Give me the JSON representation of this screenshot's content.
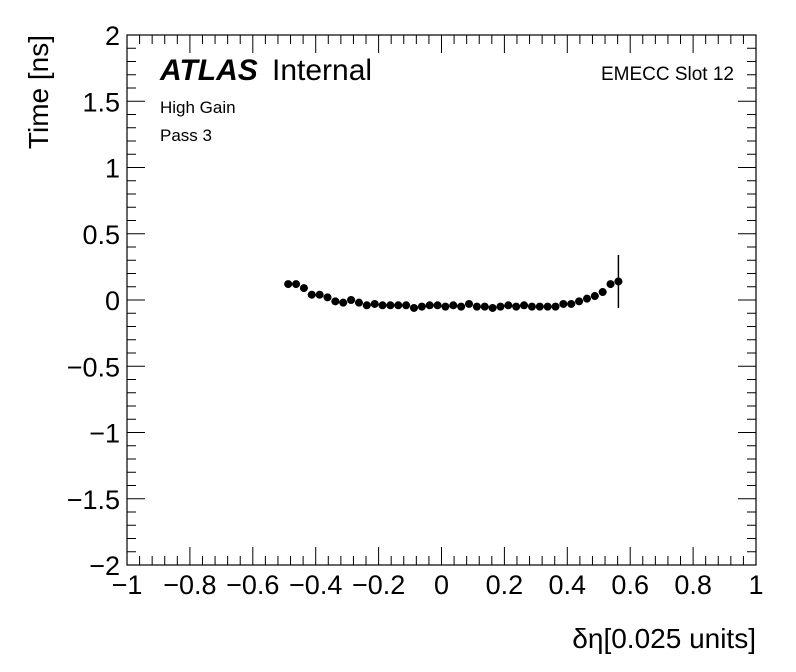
{
  "chart_data": {
    "type": "scatter",
    "xlabel": "δη[0.025 units]",
    "ylabel": "Time [ns]",
    "xlim": [
      -1,
      1
    ],
    "ylim": [
      -2,
      2
    ],
    "x_ticks": [
      -1,
      -0.8,
      -0.6,
      -0.4,
      -0.2,
      0,
      0.2,
      0.4,
      0.6,
      0.8,
      1
    ],
    "x_tick_labels": [
      "−1",
      "−0.8",
      "−0.6",
      "−0.4",
      "−0.2",
      "0",
      "0.2",
      "0.4",
      "0.6",
      "0.8",
      "1"
    ],
    "y_ticks": [
      -2,
      -1.5,
      -1,
      -0.5,
      0,
      0.5,
      1,
      1.5,
      2
    ],
    "y_tick_labels": [
      "−2",
      "−1.5",
      "−1",
      "−0.5",
      "0",
      "0.5",
      "1",
      "1.5",
      "2"
    ],
    "grid": false,
    "marker_color": "#000000",
    "series": [
      {
        "x": [
          -0.4875,
          -0.4625,
          -0.4375,
          -0.4125,
          -0.3875,
          -0.3625,
          -0.3375,
          -0.3125,
          -0.2875,
          -0.2625,
          -0.2375,
          -0.2125,
          -0.1875,
          -0.1625,
          -0.1375,
          -0.1125,
          -0.0875,
          -0.0625,
          -0.0375,
          -0.0125,
          0.0125,
          0.0375,
          0.0625,
          0.0875,
          0.1125,
          0.1375,
          0.1625,
          0.1875,
          0.2125,
          0.2375,
          0.2625,
          0.2875,
          0.3125,
          0.3375,
          0.3625,
          0.3875,
          0.4125,
          0.4375,
          0.4625,
          0.4875,
          0.5125,
          0.5375,
          0.5625
        ],
        "y": [
          0.12,
          0.12,
          0.09,
          0.04,
          0.04,
          0.02,
          -0.01,
          -0.02,
          0.0,
          -0.02,
          -0.04,
          -0.03,
          -0.04,
          -0.04,
          -0.04,
          -0.04,
          -0.06,
          -0.05,
          -0.04,
          -0.04,
          -0.05,
          -0.04,
          -0.05,
          -0.03,
          -0.05,
          -0.05,
          -0.06,
          -0.05,
          -0.04,
          -0.05,
          -0.04,
          -0.05,
          -0.05,
          -0.05,
          -0.05,
          -0.03,
          -0.03,
          -0.01,
          0.01,
          0.03,
          0.06,
          0.12,
          0.14
        ],
        "yerr": [
          0.01,
          0.01,
          0.01,
          0.01,
          0.01,
          0.01,
          0.01,
          0.01,
          0.01,
          0.01,
          0.01,
          0.01,
          0.01,
          0.01,
          0.01,
          0.01,
          0.01,
          0.01,
          0.01,
          0.01,
          0.01,
          0.01,
          0.01,
          0.01,
          0.01,
          0.01,
          0.01,
          0.01,
          0.01,
          0.01,
          0.01,
          0.01,
          0.01,
          0.01,
          0.01,
          0.01,
          0.01,
          0.01,
          0.01,
          0.02,
          0.02,
          0.02,
          0.2
        ]
      }
    ],
    "annotations": {
      "atlas": "ATLAS",
      "internal": "Internal",
      "gain": "High Gain",
      "pass": "Pass 3",
      "slot": "EMECC Slot 12"
    }
  }
}
